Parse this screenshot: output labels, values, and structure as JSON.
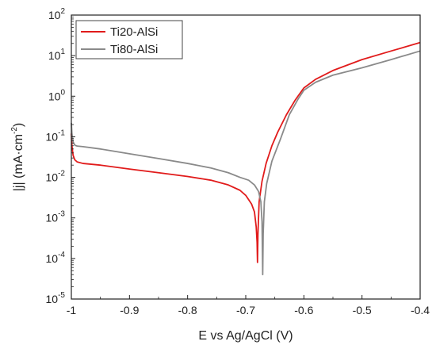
{
  "chart_data": {
    "type": "line",
    "xlabel": "E vs Ag/AgCl (V)",
    "ylabel": {
      "main": "|j| (mA·cm",
      "sup": "-2",
      "end": ")"
    },
    "x_range": [
      -1.0,
      -0.4
    ],
    "y_range": [
      1e-05,
      100
    ],
    "y_scale": "log",
    "x_ticks": [
      -1.0,
      -0.9,
      -0.8,
      -0.7,
      -0.6,
      -0.5,
      -0.4
    ],
    "x_tick_labels": [
      "-1",
      "-0.9",
      "-0.8",
      "-0.7",
      "-0.6",
      "-0.5",
      "-0.4"
    ],
    "y_ticks": [
      {
        "value": 1e-05,
        "base": "10",
        "exp": "-5"
      },
      {
        "value": 0.0001,
        "base": "10",
        "exp": "-4"
      },
      {
        "value": 0.001,
        "base": "10",
        "exp": "-3"
      },
      {
        "value": 0.01,
        "base": "10",
        "exp": "-2"
      },
      {
        "value": 0.1,
        "base": "10",
        "exp": "-1"
      },
      {
        "value": 1,
        "base": "10",
        "exp": "0"
      },
      {
        "value": 10,
        "base": "10",
        "exp": "1"
      },
      {
        "value": 100,
        "base": "10",
        "exp": "2"
      }
    ],
    "legend_position": "top-left",
    "grid": false,
    "series": [
      {
        "name": "Ti20-AlSi",
        "color": "#e11b1b",
        "points": [
          [
            -1.0,
            0.12
          ],
          [
            -0.999,
            0.06
          ],
          [
            -0.997,
            0.035
          ],
          [
            -0.994,
            0.027
          ],
          [
            -0.99,
            0.024
          ],
          [
            -0.98,
            0.022
          ],
          [
            -0.95,
            0.02
          ],
          [
            -0.9,
            0.016
          ],
          [
            -0.85,
            0.013
          ],
          [
            -0.8,
            0.0105
          ],
          [
            -0.76,
            0.0085
          ],
          [
            -0.73,
            0.0065
          ],
          [
            -0.71,
            0.0048
          ],
          [
            -0.7,
            0.0036
          ],
          [
            -0.69,
            0.0022
          ],
          [
            -0.685,
            0.0014
          ],
          [
            -0.682,
            0.0006
          ],
          [
            -0.6805,
            0.00025
          ],
          [
            -0.6798,
            8e-05
          ],
          [
            -0.679,
            0.0004
          ],
          [
            -0.677,
            0.0025
          ],
          [
            -0.672,
            0.008
          ],
          [
            -0.665,
            0.022
          ],
          [
            -0.655,
            0.06
          ],
          [
            -0.645,
            0.13
          ],
          [
            -0.63,
            0.35
          ],
          [
            -0.615,
            0.8
          ],
          [
            -0.6,
            1.6
          ],
          [
            -0.58,
            2.6
          ],
          [
            -0.55,
            4.3
          ],
          [
            -0.5,
            8.0
          ],
          [
            -0.45,
            13.0
          ],
          [
            -0.4,
            21.0
          ]
        ]
      },
      {
        "name": "Ti80-AlSi",
        "color": "#8a8a8a",
        "points": [
          [
            -1.0,
            0.22
          ],
          [
            -0.999,
            0.12
          ],
          [
            -0.997,
            0.075
          ],
          [
            -0.994,
            0.062
          ],
          [
            -0.99,
            0.059
          ],
          [
            -0.98,
            0.057
          ],
          [
            -0.95,
            0.05
          ],
          [
            -0.9,
            0.038
          ],
          [
            -0.85,
            0.029
          ],
          [
            -0.8,
            0.022
          ],
          [
            -0.76,
            0.017
          ],
          [
            -0.73,
            0.013
          ],
          [
            -0.71,
            0.01
          ],
          [
            -0.695,
            0.0085
          ],
          [
            -0.685,
            0.0065
          ],
          [
            -0.678,
            0.0045
          ],
          [
            -0.674,
            0.0025
          ],
          [
            -0.672,
            0.0008
          ],
          [
            -0.6708,
            4e-05
          ],
          [
            -0.67,
            0.0004
          ],
          [
            -0.668,
            0.0025
          ],
          [
            -0.664,
            0.007
          ],
          [
            -0.655,
            0.025
          ],
          [
            -0.64,
            0.09
          ],
          [
            -0.625,
            0.35
          ],
          [
            -0.61,
            0.85
          ],
          [
            -0.6,
            1.4
          ],
          [
            -0.58,
            2.2
          ],
          [
            -0.55,
            3.3
          ],
          [
            -0.5,
            5.0
          ],
          [
            -0.45,
            8.0
          ],
          [
            -0.4,
            13.0
          ]
        ]
      }
    ]
  }
}
